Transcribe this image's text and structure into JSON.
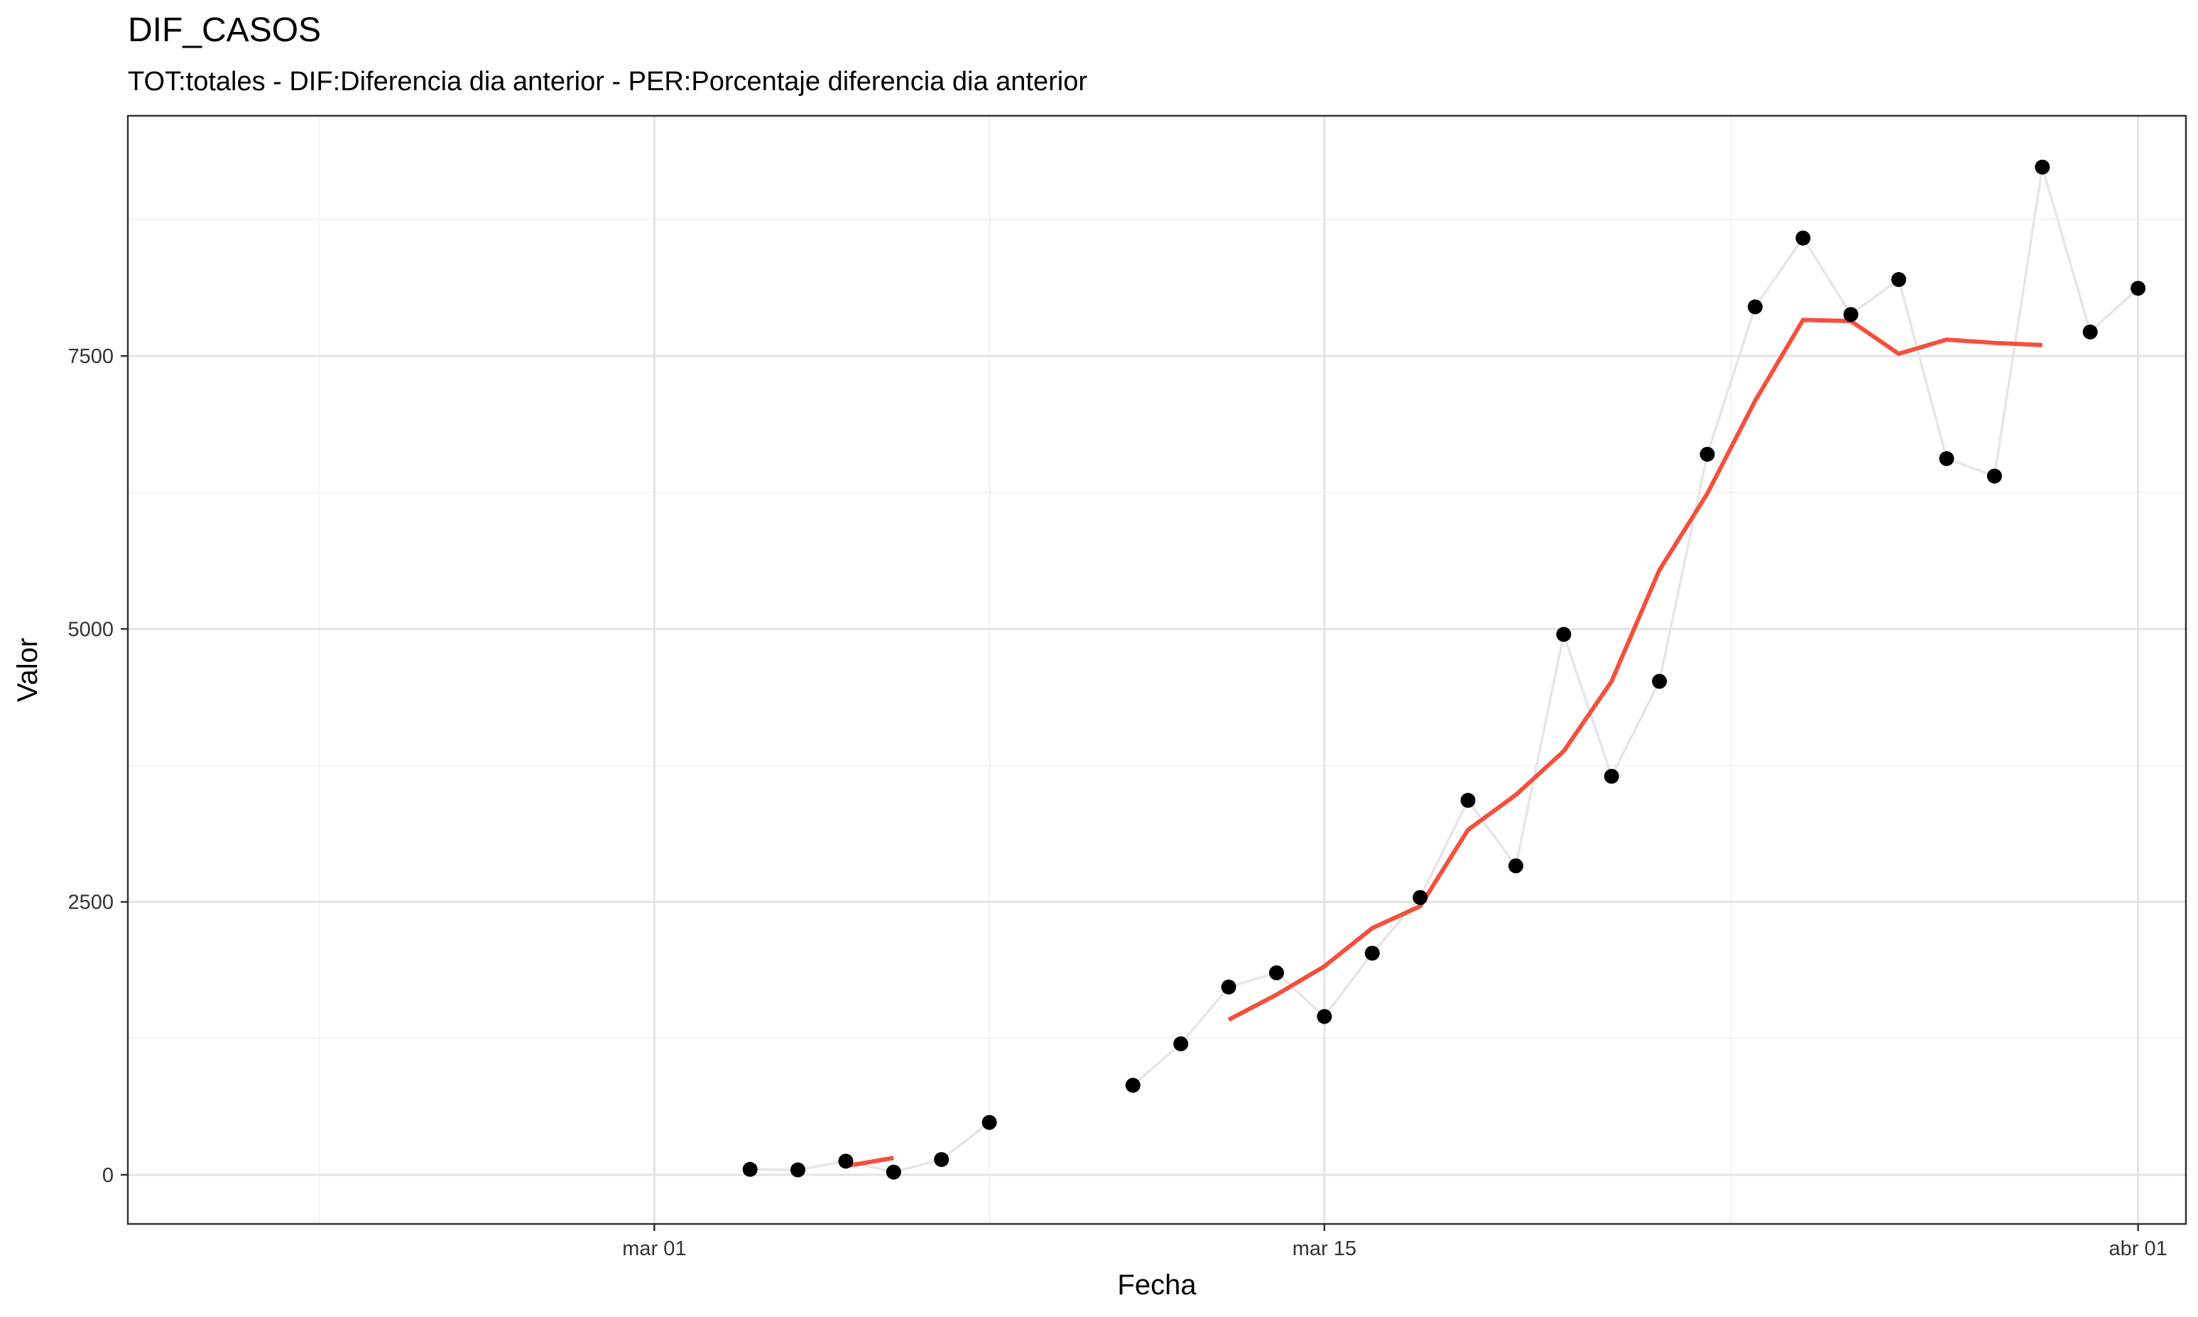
{
  "chart_data": {
    "type": "line",
    "title": "DIF_CASOS",
    "subtitle": "TOT:totales - DIF:Diferencia dia anterior - PER:Porcentaje diferencia dia anterior",
    "xlabel": "Fecha",
    "ylabel": "Valor",
    "x_range": [
      "2020-02-19",
      "2020-04-02"
    ],
    "ylim": [
      -450,
      9700
    ],
    "x_ticks": [
      {
        "date": "2020-03-01",
        "label": "mar 01"
      },
      {
        "date": "2020-03-15",
        "label": "mar 15"
      },
      {
        "date": "2020-04-01",
        "label": "abr 01"
      }
    ],
    "y_ticks": [
      0,
      2500,
      5000,
      7500
    ],
    "grid": true,
    "colors": {
      "points": "#000000",
      "connector": "#e6e6e6",
      "moving_average": "#f4503c"
    },
    "series": [
      {
        "mark": "points",
        "x": [
          "2020-03-03",
          "2020-03-04",
          "2020-03-05",
          "2020-03-06",
          "2020-03-07",
          "2020-03-08",
          "2020-03-11",
          "2020-03-12",
          "2020-03-13",
          "2020-03-14",
          "2020-03-15",
          "2020-03-16",
          "2020-03-17",
          "2020-03-18",
          "2020-03-19",
          "2020-03-20",
          "2020-03-21",
          "2020-03-22",
          "2020-03-23",
          "2020-03-24",
          "2020-03-25",
          "2020-03-26",
          "2020-03-27",
          "2020-03-28",
          "2020-03-29",
          "2020-03-30",
          "2020-03-31",
          "2020-04-01"
        ],
        "values": [
          50,
          45,
          125,
          25,
          140,
          480,
          820,
          1200,
          1720,
          1850,
          1450,
          2030,
          2540,
          3430,
          2830,
          4950,
          3650,
          4520,
          6600,
          7950,
          8580,
          7880,
          8200,
          6560,
          6400,
          9230,
          7720,
          8120
        ]
      },
      {
        "mark": "moving-average",
        "segments": [
          {
            "x": [
              "2020-03-05",
              "2020-03-06"
            ],
            "values": [
              80,
              155
            ]
          },
          {
            "x": [
              "2020-03-13",
              "2020-03-14",
              "2020-03-15",
              "2020-03-16",
              "2020-03-17",
              "2020-03-18",
              "2020-03-19",
              "2020-03-20",
              "2020-03-21",
              "2020-03-22",
              "2020-03-23",
              "2020-03-24",
              "2020-03-25",
              "2020-03-26",
              "2020-03-27",
              "2020-03-28",
              "2020-03-29",
              "2020-03-30"
            ],
            "values": [
              1420,
              1650,
              1910,
              2260,
              2460,
              3160,
              3480,
              3880,
              4520,
              5540,
              6240,
              7090,
              7830,
              7820,
              7520,
              7650,
              7620,
              7600
            ]
          }
        ]
      }
    ]
  }
}
